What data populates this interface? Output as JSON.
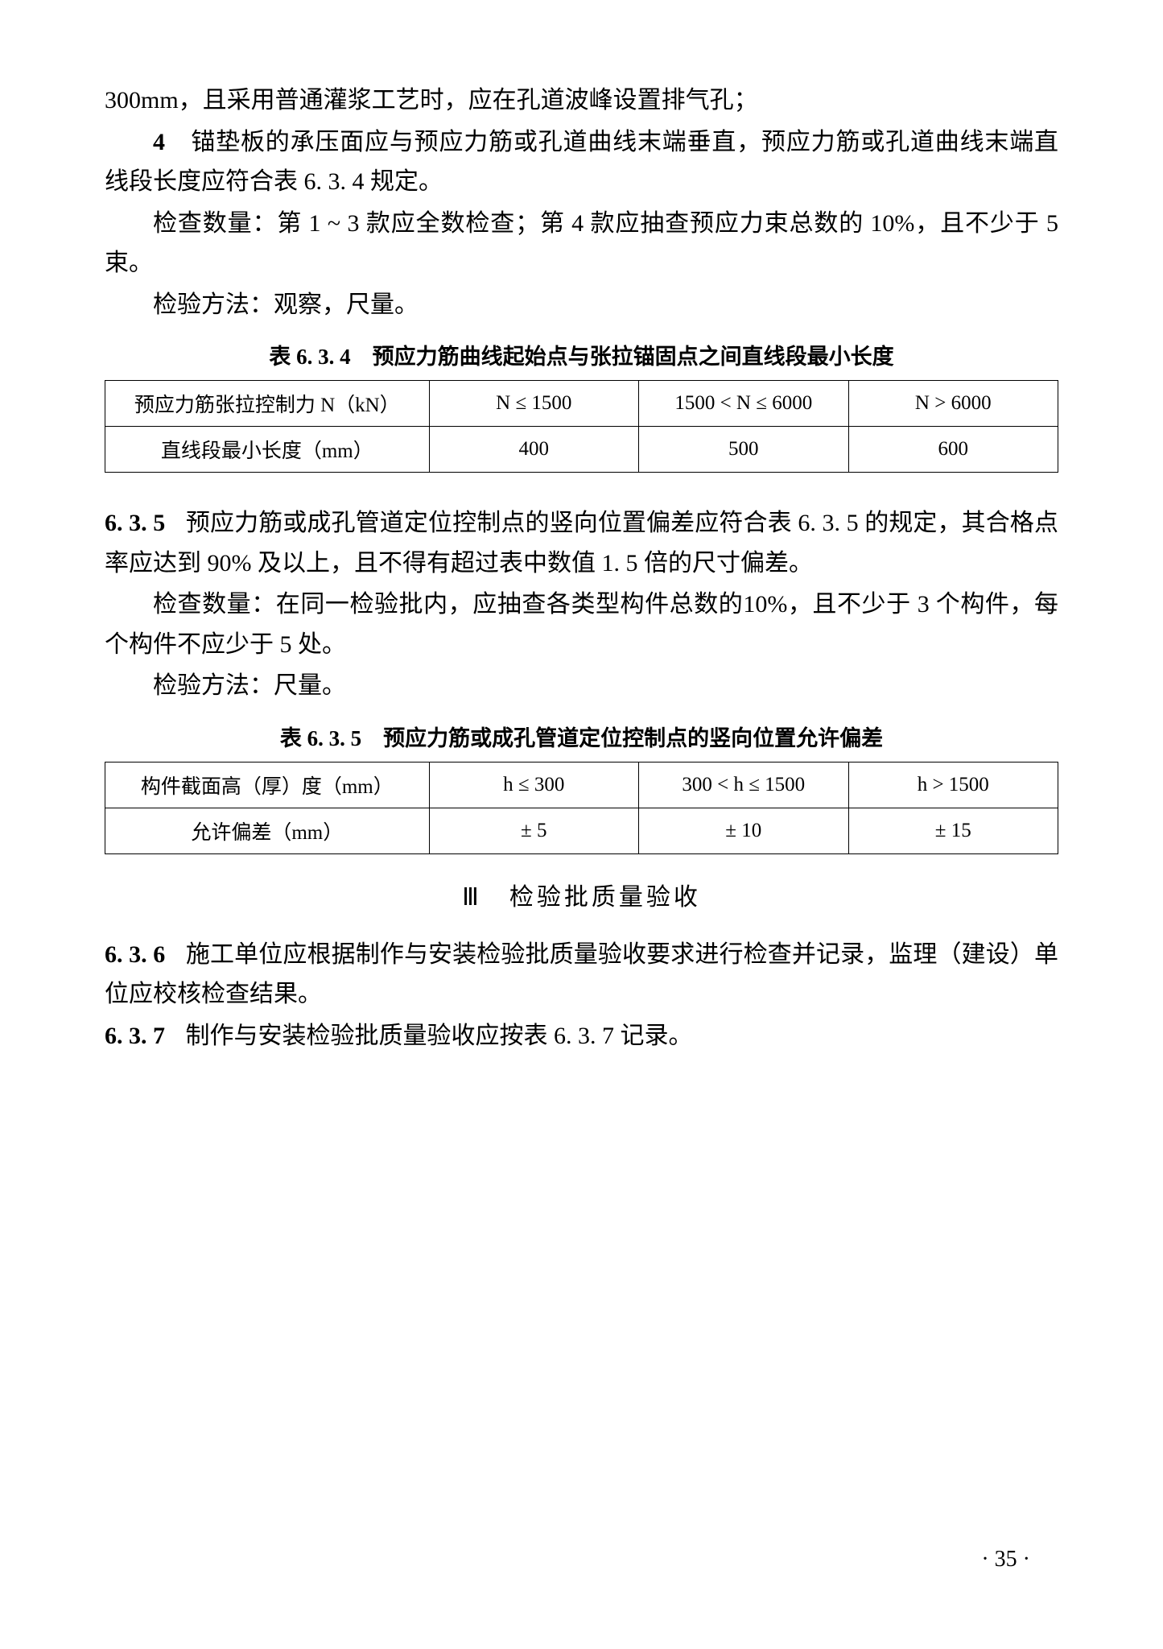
{
  "paragraphs": {
    "p1": "300mm，且采用普通灌浆工艺时，应在孔道波峰设置排气孔；",
    "p2_num": "4",
    "p2_text": "锚垫板的承压面应与预应力筋或孔道曲线末端垂直，预应力筋或孔道曲线末端直线段长度应符合表 6. 3. 4 规定。",
    "p3": "检查数量：第 1 ~ 3 款应全数检查；第 4 款应抽查预应力束总数的 10%，且不少于 5 束。",
    "p4": "检验方法：观察，尺量。"
  },
  "table634": {
    "title": "表 6. 3. 4　预应力筋曲线起始点与张拉锚固点之间直线段最小长度",
    "row1": {
      "label": "预应力筋张拉控制力 N（kN）",
      "c1": "N ≤ 1500",
      "c2": "1500 < N ≤ 6000",
      "c3": "N > 6000"
    },
    "row2": {
      "label": "直线段最小长度（mm）",
      "c1": "400",
      "c2": "500",
      "c3": "600"
    }
  },
  "clause635": {
    "num": "6. 3. 5",
    "text1": "预应力筋或成孔管道定位控制点的竖向位置偏差应符合表 6. 3. 5 的规定，其合格点率应达到 90% 及以上，且不得有超过表中数值 1. 5 倍的尺寸偏差。",
    "text2": "检查数量：在同一检验批内，应抽查各类型构件总数的10%，且不少于 3 个构件，每个构件不应少于 5 处。",
    "text3": "检验方法：尺量。"
  },
  "table635": {
    "title": "表 6. 3. 5　预应力筋或成孔管道定位控制点的竖向位置允许偏差",
    "row1": {
      "label": "构件截面高（厚）度（mm）",
      "c1": "h ≤ 300",
      "c2": "300 < h ≤ 1500",
      "c3": "h > 1500"
    },
    "row2": {
      "label": "允许偏差（mm）",
      "c1": "± 5",
      "c2": "± 10",
      "c3": "± 15"
    }
  },
  "section3_heading": "Ⅲ　检验批质量验收",
  "clause636": {
    "num": "6. 3. 6",
    "text": "施工单位应根据制作与安装检验批质量验收要求进行检查并记录，监理（建设）单位应校核检查结果。"
  },
  "clause637": {
    "num": "6. 3. 7",
    "text": "制作与安装检验批质量验收应按表 6. 3. 7 记录。"
  },
  "page_number": "· 35 ·"
}
